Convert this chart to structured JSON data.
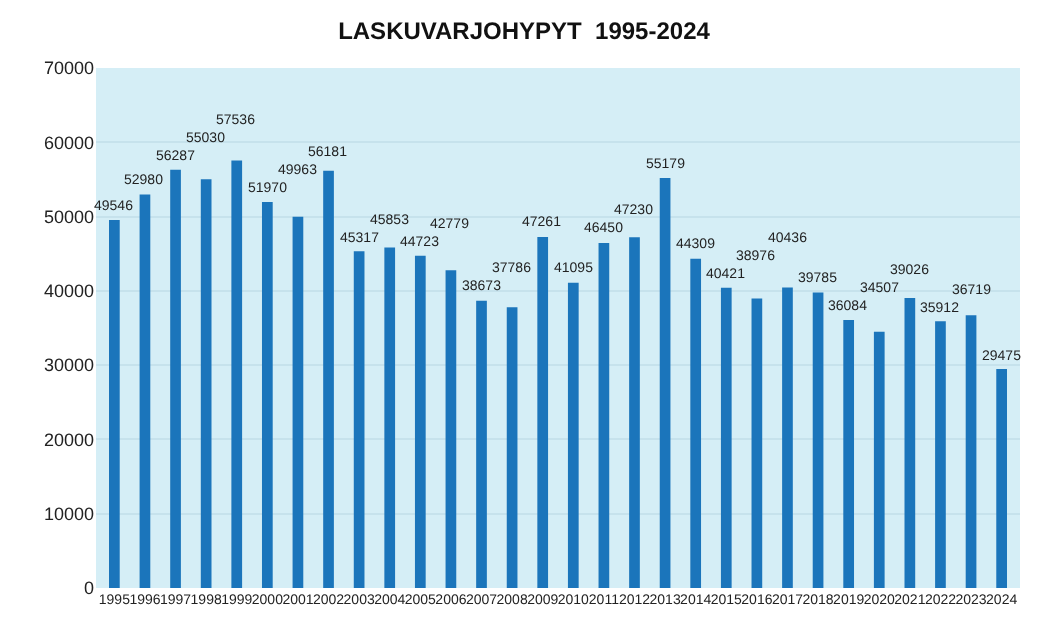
{
  "chart_data": {
    "type": "bar",
    "title": "LASKUVARJOHYPYT  1995-2024",
    "categories": [
      "1995",
      "1996",
      "1997",
      "1998",
      "1999",
      "2000",
      "2001",
      "2002",
      "2003",
      "2004",
      "2005",
      "2006",
      "2007",
      "2008",
      "2009",
      "2010",
      "2011",
      "2012",
      "2013",
      "2014",
      "2015",
      "2016",
      "2017",
      "2018",
      "2019",
      "2020",
      "2021",
      "2022",
      "2023",
      "2024"
    ],
    "values": [
      49546,
      52980,
      56287,
      55030,
      57536,
      51970,
      49963,
      56181,
      45317,
      45853,
      44723,
      42779,
      38673,
      37786,
      47261,
      41095,
      46450,
      47230,
      55179,
      44309,
      40421,
      38976,
      40436,
      39785,
      36084,
      34507,
      39026,
      35912,
      36719,
      29475
    ],
    "color": "#1b75bb",
    "ylim": [
      0,
      70000
    ],
    "yticks": [
      0,
      10000,
      20000,
      30000,
      40000,
      50000,
      60000,
      70000
    ],
    "grid": "y",
    "data_labels": true
  }
}
